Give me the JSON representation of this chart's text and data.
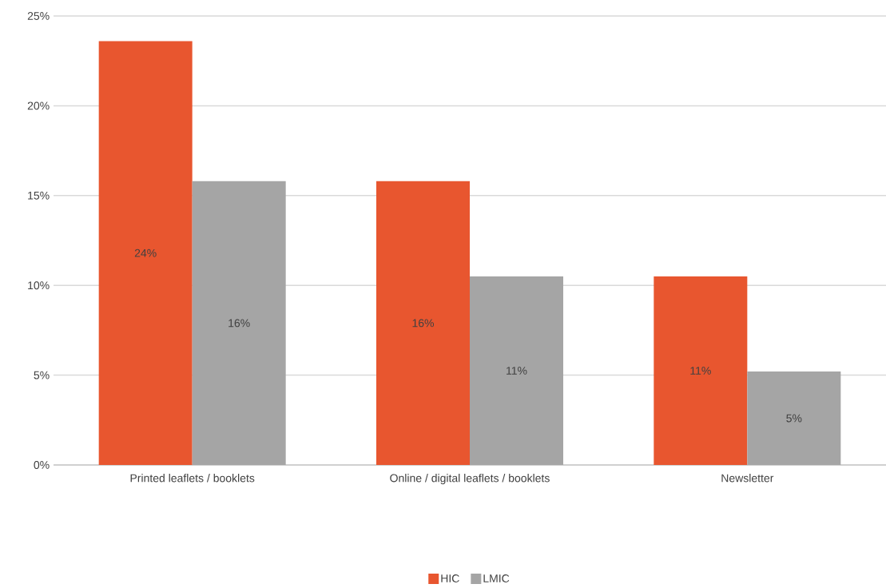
{
  "chart_data": {
    "type": "bar",
    "categories": [
      "Printed leaflets / booklets",
      "Online / digital leaflets / booklets",
      "Newsletter"
    ],
    "series": [
      {
        "name": "HIC",
        "color": "#e8562f",
        "values": [
          23.6,
          15.8,
          10.5
        ],
        "value_labels": [
          "24%",
          "16%",
          "11%"
        ]
      },
      {
        "name": "LMIC",
        "color": "#a5a5a5",
        "values": [
          15.8,
          10.5,
          5.2
        ],
        "value_labels": [
          "16%",
          "11%",
          "5%"
        ]
      }
    ],
    "ylim": [
      0,
      25
    ],
    "yticks": [
      {
        "value": 0,
        "label": "0%"
      },
      {
        "value": 5,
        "label": "5%"
      },
      {
        "value": 10,
        "label": "10%"
      },
      {
        "value": 15,
        "label": "15%"
      },
      {
        "value": 20,
        "label": "20%"
      },
      {
        "value": 25,
        "label": "25%"
      }
    ],
    "grid": "y",
    "legend": "bottom"
  }
}
